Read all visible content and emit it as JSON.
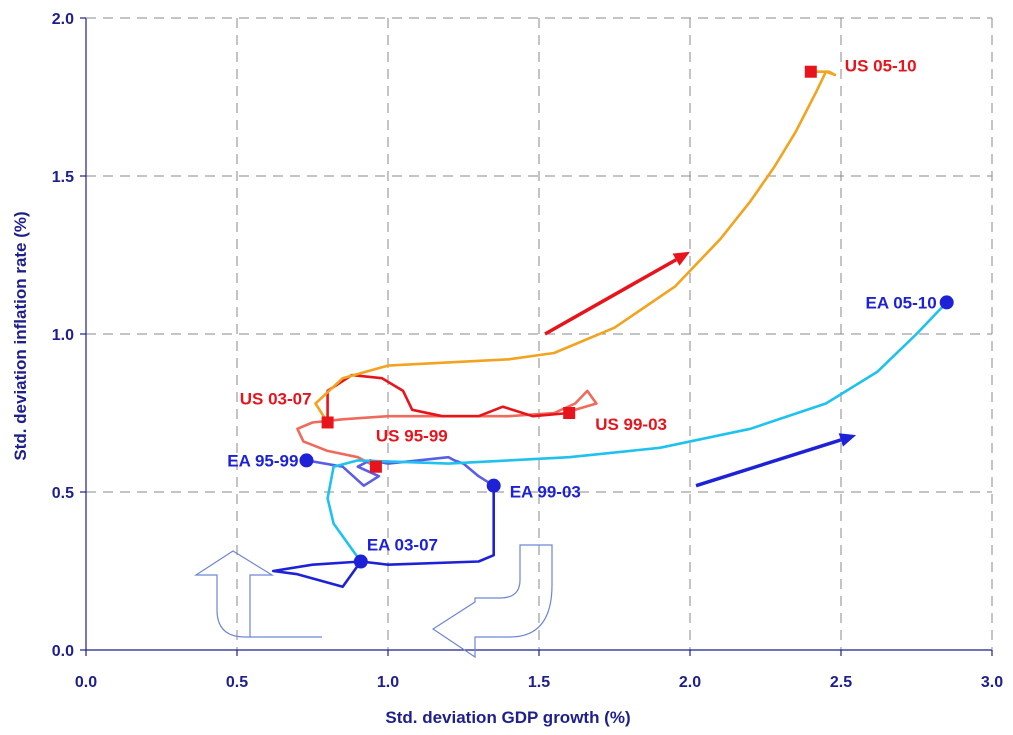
{
  "chart_data": {
    "type": "line",
    "xlabel": "Std. deviation GDP growth (%)",
    "ylabel": "Std. deviation inflation rate (%)",
    "xlim": [
      0,
      3
    ],
    "ylim": [
      0,
      2
    ],
    "x_ticks": [
      "0.0",
      "0.5",
      "1.0",
      "1.5",
      "2.0",
      "2.5",
      "3.0"
    ],
    "y_ticks": [
      "0.0",
      "0.5",
      "1.0",
      "1.5",
      "2.0"
    ],
    "grid": true,
    "colors": {
      "us_red": "#e8141c",
      "us_light": "#f06a5c",
      "us_orange": "#f2a320",
      "ea_blue": "#1e22d6",
      "ea_blue_light": "#5a5ee6",
      "ea_cyan": "#1fc2ec",
      "axis": "#1f1f8c"
    },
    "series": [
      {
        "color": "us_light",
        "x": [
          0.96,
          0.9,
          0.8,
          0.72,
          0.7,
          0.75,
          0.85,
          1.0,
          1.2,
          1.4,
          1.55,
          1.62,
          1.66,
          1.69,
          1.62,
          1.6
        ],
        "y": [
          0.58,
          0.61,
          0.63,
          0.66,
          0.7,
          0.72,
          0.73,
          0.74,
          0.74,
          0.74,
          0.75,
          0.78,
          0.82,
          0.78,
          0.76,
          0.75
        ]
      },
      {
        "color": "us_red",
        "x": [
          1.6,
          1.48,
          1.38,
          1.3,
          1.18,
          1.08,
          1.05,
          0.98,
          0.88,
          0.8,
          0.8
        ],
        "y": [
          0.75,
          0.74,
          0.77,
          0.74,
          0.74,
          0.76,
          0.82,
          0.86,
          0.87,
          0.82,
          0.72
        ]
      },
      {
        "color": "us_orange",
        "x": [
          0.8,
          0.76,
          0.85,
          1.0,
          1.2,
          1.4,
          1.55,
          1.75,
          1.95,
          2.1,
          2.2,
          2.28,
          2.35,
          2.42,
          2.45,
          2.48,
          2.46,
          2.4
        ],
        "y": [
          0.72,
          0.78,
          0.86,
          0.9,
          0.91,
          0.92,
          0.94,
          1.02,
          1.15,
          1.3,
          1.42,
          1.53,
          1.64,
          1.77,
          1.83,
          1.82,
          1.83,
          1.83
        ]
      },
      {
        "color": "ea_blue_light",
        "x": [
          0.73,
          0.85,
          0.92,
          0.97,
          0.9,
          0.94,
          1.0,
          1.1,
          1.2,
          1.22,
          1.25,
          1.3,
          1.35
        ],
        "y": [
          0.6,
          0.58,
          0.52,
          0.55,
          0.58,
          0.6,
          0.59,
          0.6,
          0.61,
          0.6,
          0.59,
          0.55,
          0.52
        ]
      },
      {
        "color": "ea_blue",
        "x": [
          1.35,
          1.35,
          1.3,
          1.0,
          0.91,
          0.75,
          0.62,
          0.7,
          0.85,
          0.91
        ],
        "y": [
          0.52,
          0.3,
          0.28,
          0.27,
          0.28,
          0.27,
          0.25,
          0.24,
          0.2,
          0.28
        ]
      },
      {
        "color": "ea_cyan",
        "x": [
          0.91,
          0.82,
          0.8,
          0.82,
          0.9,
          1.2,
          1.6,
          1.9,
          2.2,
          2.45,
          2.62,
          2.75,
          2.85
        ],
        "y": [
          0.28,
          0.4,
          0.48,
          0.58,
          0.6,
          0.59,
          0.61,
          0.64,
          0.7,
          0.78,
          0.88,
          1.0,
          1.1
        ]
      }
    ],
    "markers": [
      {
        "label": "US 95-99",
        "x": 0.96,
        "y": 0.58,
        "shape": "square",
        "color": "us_red"
      },
      {
        "label": "US 99-03",
        "x": 1.6,
        "y": 0.75,
        "shape": "square",
        "color": "us_red"
      },
      {
        "label": "US 03-07",
        "x": 0.8,
        "y": 0.72,
        "shape": "square",
        "color": "us_red"
      },
      {
        "label": "US 05-10",
        "x": 2.4,
        "y": 1.83,
        "shape": "square",
        "color": "us_red"
      },
      {
        "label": "EA 95-99",
        "x": 0.73,
        "y": 0.6,
        "shape": "circle",
        "color": "ea_blue"
      },
      {
        "label": "EA 99-03",
        "x": 1.35,
        "y": 0.52,
        "shape": "circle",
        "color": "ea_blue"
      },
      {
        "label": "EA 03-07",
        "x": 0.91,
        "y": 0.28,
        "shape": "circle",
        "color": "ea_blue"
      },
      {
        "label": "EA 05-10",
        "x": 2.85,
        "y": 1.1,
        "shape": "circle",
        "color": "ea_blue"
      }
    ],
    "arrows": [
      {
        "color": "us_red",
        "from": [
          1.52,
          1.0
        ],
        "to": [
          2.0,
          1.26
        ]
      },
      {
        "color": "ea_blue",
        "from": [
          2.02,
          0.52
        ],
        "to": [
          2.55,
          0.68
        ]
      }
    ]
  }
}
